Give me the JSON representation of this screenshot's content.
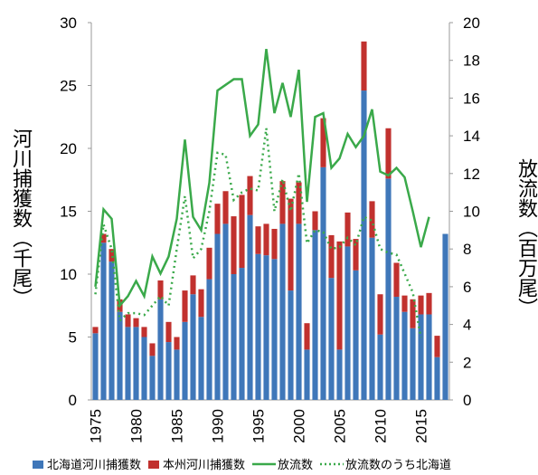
{
  "chart_data": {
    "type": "bar-line",
    "y_label": "河川捕獲数（千尾）",
    "y2_label": "放流数（百万尾）",
    "categories": [
      "1975",
      null,
      null,
      null,
      null,
      "1980",
      null,
      null,
      null,
      null,
      "1985",
      null,
      null,
      null,
      null,
      "1990",
      null,
      null,
      null,
      null,
      "1995",
      null,
      null,
      null,
      null,
      "2000",
      null,
      null,
      null,
      null,
      "2005",
      null,
      null,
      null,
      null,
      "2010",
      null,
      null,
      null,
      null,
      "2015",
      null,
      null,
      null
    ],
    "ylim": [
      0,
      30
    ],
    "yticks": [
      0,
      5,
      10,
      15,
      20,
      25,
      30
    ],
    "y2lim": [
      0,
      20
    ],
    "y2ticks": [
      0,
      2,
      4,
      6,
      8,
      10,
      12,
      14,
      16,
      18,
      20
    ],
    "series": [
      {
        "name": "北海道河川捕獲数",
        "kind": "bar",
        "color": "#3f77b9",
        "values": [
          5.3,
          12.5,
          11.0,
          7.0,
          5.8,
          5.8,
          5.0,
          3.5,
          8.0,
          4.6,
          4.0,
          6.2,
          8.4,
          6.6,
          9.6,
          13.2,
          14.0,
          10.0,
          10.5,
          14.7,
          11.6,
          11.5,
          11.2,
          14.0,
          8.7,
          14.0,
          4.0,
          13.5,
          18.5,
          9.7,
          4.0,
          12.2,
          10.3,
          24.6,
          12.9,
          5.2,
          17.6,
          8.2,
          7.0,
          5.7,
          6.8,
          6.8,
          3.4,
          13.2
        ]
      },
      {
        "name": "本州河川捕獲数",
        "kind": "bar",
        "color": "#c1312e",
        "values": [
          0.5,
          0.7,
          1.0,
          1.0,
          1.0,
          0.7,
          0.8,
          1.0,
          1.5,
          1.6,
          1.0,
          2.5,
          1.5,
          2.2,
          2.5,
          2.4,
          2.6,
          4.6,
          5.8,
          3.1,
          2.2,
          2.5,
          2.4,
          3.4,
          7.3,
          3.3,
          2.1,
          1.5,
          3.9,
          3.4,
          8.6,
          2.7,
          2.5,
          3.9,
          2.9,
          3.2,
          4.0,
          2.7,
          1.3,
          2.3,
          1.5,
          1.7,
          1.7,
          0
        ]
      },
      {
        "name": "放流数",
        "kind": "line",
        "axis": "y2",
        "color": "#3aa94a",
        "style": "solid",
        "values": [
          6.0,
          10.1,
          9.6,
          5.0,
          5.5,
          6.3,
          5.5,
          7.6,
          6.7,
          7.6,
          9.6,
          13.8,
          9.7,
          9.0,
          11.5,
          16.4,
          16.7,
          17.0,
          17.0,
          14.0,
          14.6,
          18.6,
          15.2,
          16.8,
          15.0,
          17.5,
          10.5,
          15.0,
          15.2,
          12.3,
          12.8,
          14.1,
          13.4,
          14.0,
          15.4,
          12.1,
          11.9,
          12.3,
          11.8,
          10.0,
          8.1,
          9.7,
          null,
          null
        ]
      },
      {
        "name": "放流数のうち北海道",
        "kind": "line",
        "axis": "y2",
        "color": "#3aa94a",
        "style": "dotted",
        "values": [
          5.6,
          9.3,
          8.0,
          4.2,
          4.6,
          4.6,
          4.5,
          5.0,
          5.5,
          5.0,
          8.0,
          10.8,
          7.5,
          8.0,
          10.0,
          13.1,
          13.0,
          10.6,
          11.0,
          11.2,
          11.1,
          14.4,
          10.0,
          11.7,
          10.0,
          12.0,
          8.3,
          9.0,
          8.9,
          8.0,
          8.1,
          8.6,
          8.2,
          9.7,
          9.5,
          8.0,
          7.8,
          7.7,
          6.7,
          5.7,
          3.3,
          null,
          null,
          null
        ]
      }
    ]
  }
}
